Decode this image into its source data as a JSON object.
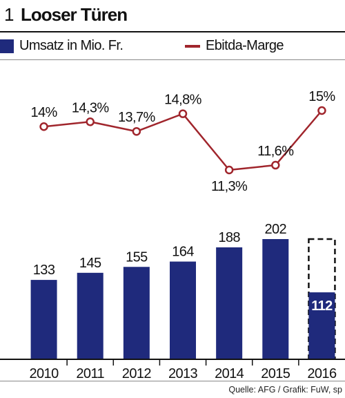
{
  "header": {
    "figure_number": "1",
    "title": "Looser Türen"
  },
  "legend": {
    "bar_label": "Umsatz in Mio. Fr.",
    "line_label": "Ebitda-Marge"
  },
  "colors": {
    "bar": "#1f2a7c",
    "line": "#a0252c",
    "projected_outline": "#111111"
  },
  "chart_data": {
    "type": "bar",
    "categories": [
      "2010",
      "2011",
      "2012",
      "2013",
      "2014",
      "2015",
      "2016"
    ],
    "series": [
      {
        "name": "Umsatz in Mio. Fr.",
        "type": "bar",
        "values": [
          133,
          145,
          155,
          164,
          188,
          202,
          112
        ],
        "labels": [
          "133",
          "145",
          "155",
          "164",
          "188",
          "202",
          "112"
        ],
        "projected_2016": 202
      },
      {
        "name": "Ebitda-Marge",
        "type": "line",
        "values": [
          14,
          14.3,
          13.7,
          14.8,
          11.3,
          11.6,
          15
        ],
        "labels": [
          "14%",
          "14,3%",
          "13,7%",
          "14,8%",
          "11,3%",
          "11,6%",
          "15%"
        ]
      }
    ],
    "ylim_bar": [
      0,
      202
    ],
    "ylim_line": [
      11.3,
      15
    ],
    "grid": false,
    "legend_position": "top-left"
  },
  "footer": {
    "source": "Quelle: AFG / Grafik: FuW, sp"
  }
}
